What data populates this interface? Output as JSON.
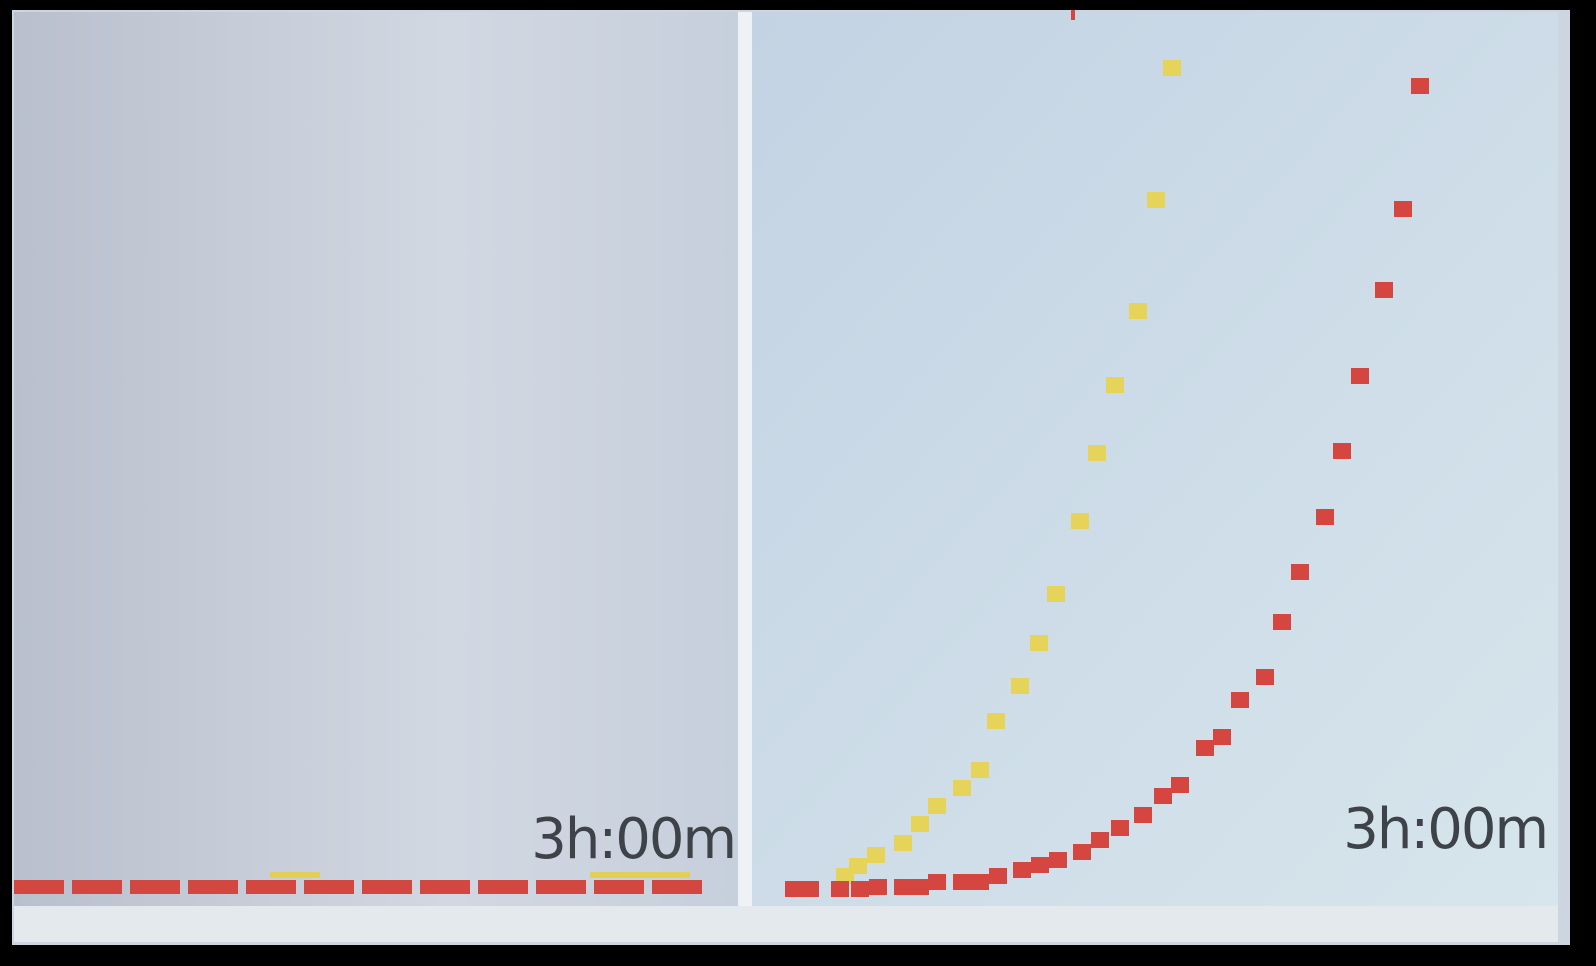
{
  "left_panel": {
    "label": "3h:00m"
  },
  "right_panel": {
    "label": "3h:00m"
  }
}
